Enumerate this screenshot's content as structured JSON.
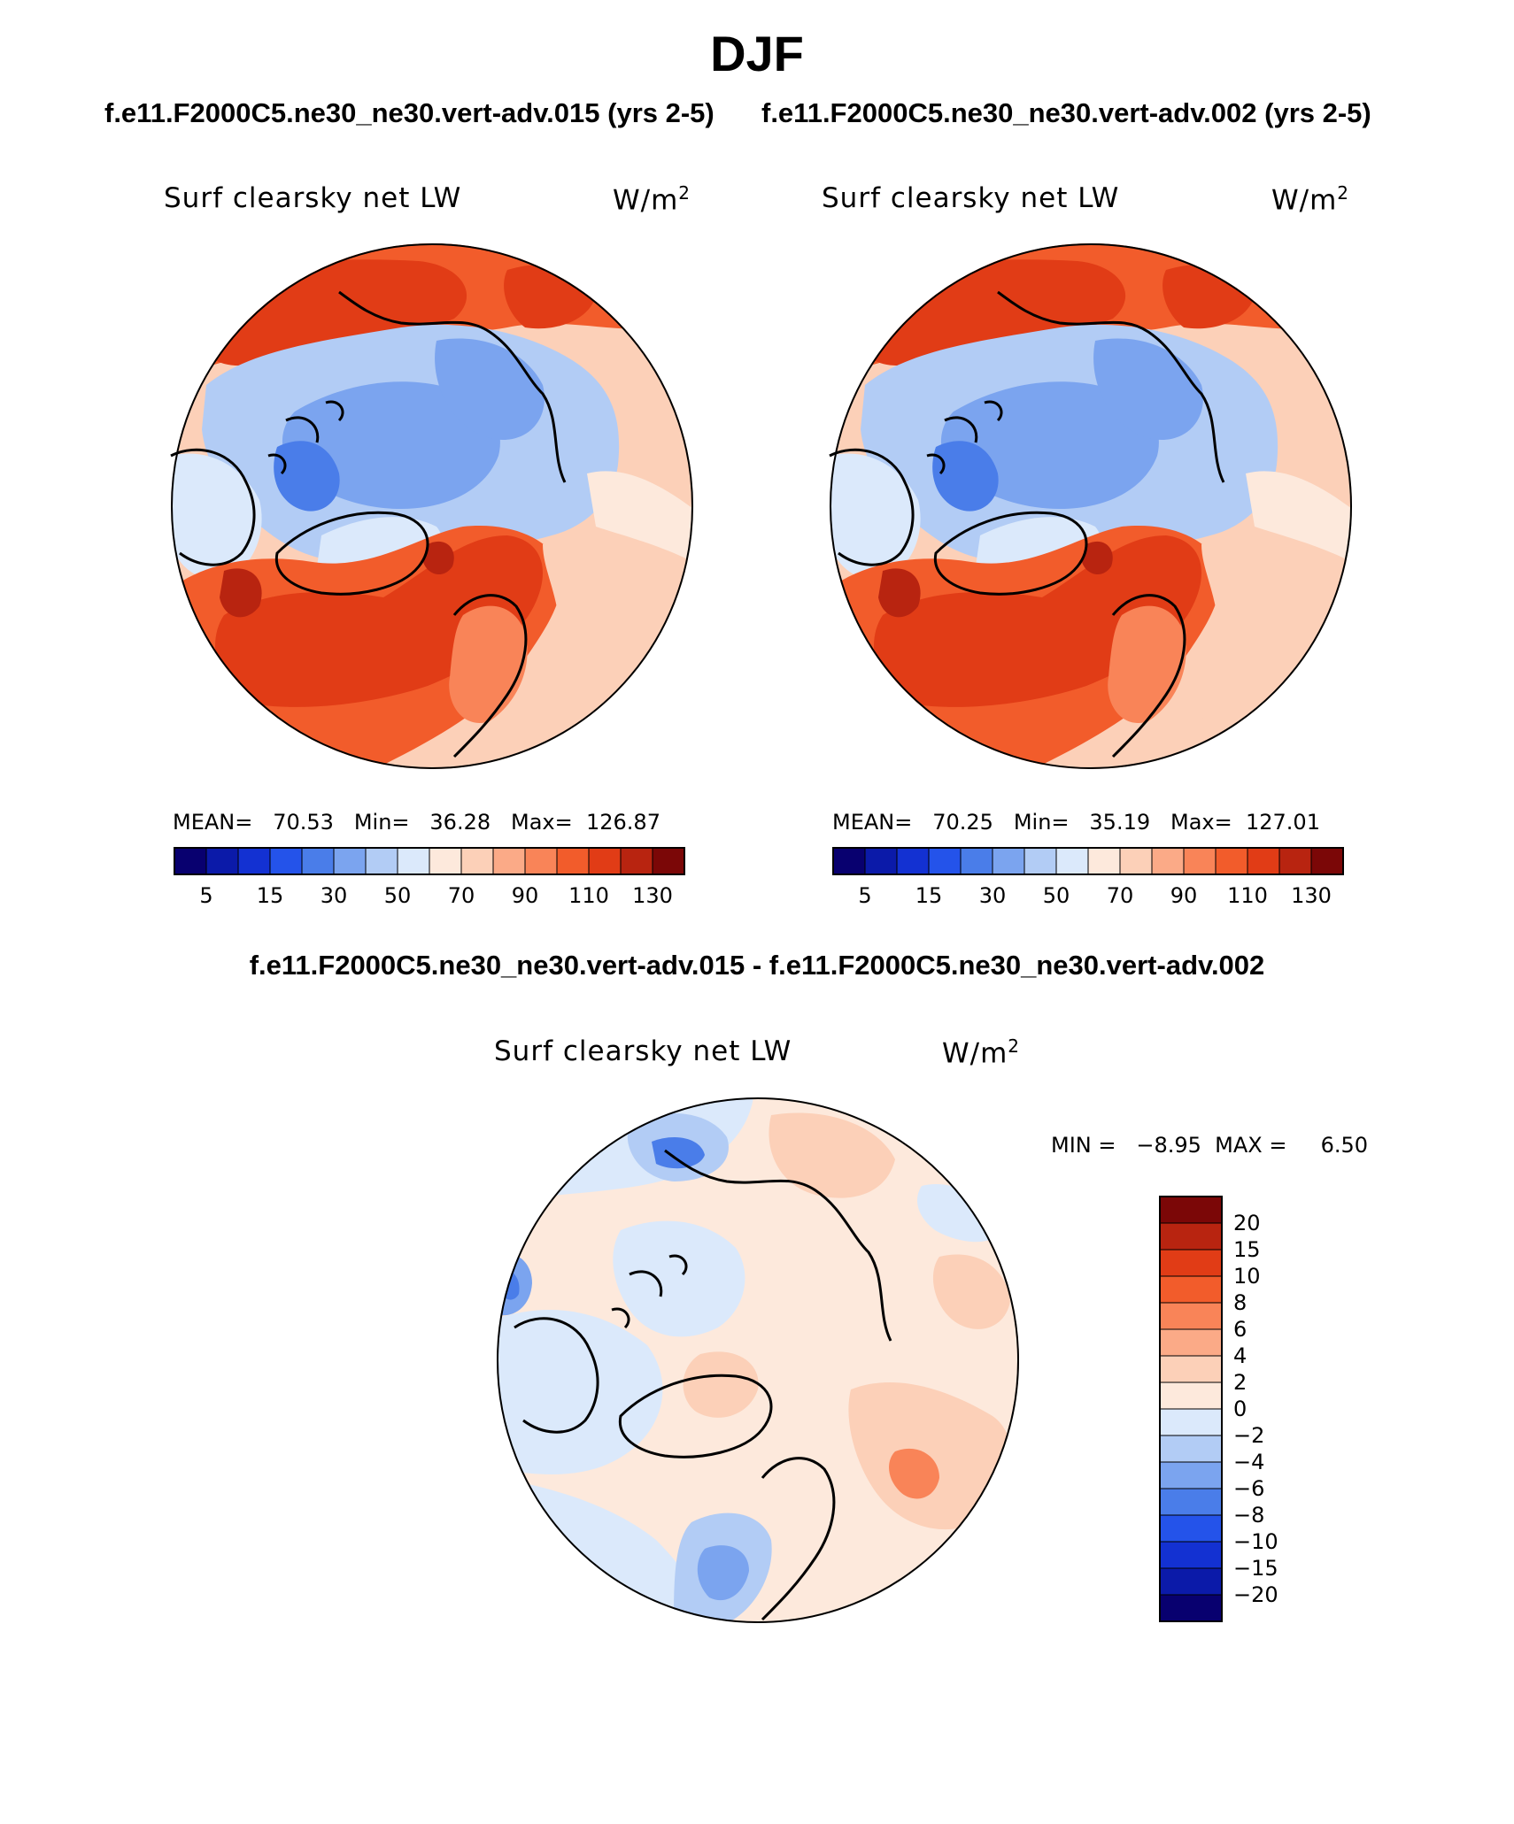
{
  "title": "DJF",
  "case_titles": {
    "left": "f.e11.F2000C5.ne30_ne30.vert-adv.015 (yrs 2-5)",
    "right": "f.e11.F2000C5.ne30_ne30.vert-adv.002 (yrs 2-5)"
  },
  "diff_title": "f.e11.F2000C5.ne30_ne30.vert-adv.015 - f.e11.F2000C5.ne30_ne30.vert-adv.002",
  "variable_label": "Surf clearsky net LW",
  "units_label": "W/m",
  "units_exponent": "2",
  "panels": [
    {
      "stats": "MEAN=   70.53   Min=   36.28   Max=  126.87",
      "mean": 70.53,
      "min": 36.28,
      "max": 126.87
    },
    {
      "stats": "MEAN=   70.25   Min=   35.19   Max=  127.01",
      "mean": 70.25,
      "min": 35.19,
      "max": 127.01
    }
  ],
  "diff_stats": "MIN =   −8.95  MAX =     6.50",
  "colorbar_main": {
    "tick_labels": [
      "5",
      "15",
      "30",
      "50",
      "70",
      "90",
      "110",
      "130"
    ],
    "colors": [
      "#08006f",
      "#0b1aa9",
      "#1331d2",
      "#2453ea",
      "#4a7de9",
      "#7ba4ef",
      "#b2ccf5",
      "#dbe9fb",
      "#fde9dc",
      "#fcd0b8",
      "#fbaa87",
      "#f98458",
      "#f25c2b",
      "#e13c16",
      "#b82410",
      "#7b0707"
    ]
  },
  "colorbar_diff": {
    "tick_labels": [
      "20",
      "15",
      "10",
      "8",
      "6",
      "4",
      "2",
      "0",
      "−2",
      "−4",
      "−6",
      "−8",
      "−10",
      "−15",
      "−20"
    ],
    "colors_top_to_bottom": [
      "#7b0707",
      "#b82410",
      "#e13c16",
      "#f25c2b",
      "#f98458",
      "#fbaa87",
      "#fcd0b8",
      "#fde9dc",
      "#dbe9fb",
      "#b2ccf5",
      "#7ba4ef",
      "#4a7de9",
      "#2453ea",
      "#1331d2",
      "#0b1aa9",
      "#08006f"
    ]
  },
  "map_colors": {
    "dark_red": "#b82410",
    "red": "#e13c16",
    "orange_red": "#f25c2b",
    "orange": "#f98458",
    "light_orange": "#fbaa87",
    "peach": "#fcd0b8",
    "pale_peach": "#fde9dc",
    "pale_blue": "#dbe9fb",
    "light_blue": "#b2ccf5",
    "medium_blue": "#7ba4ef",
    "blue": "#4a7de9",
    "strong_blue": "#2453ea"
  }
}
